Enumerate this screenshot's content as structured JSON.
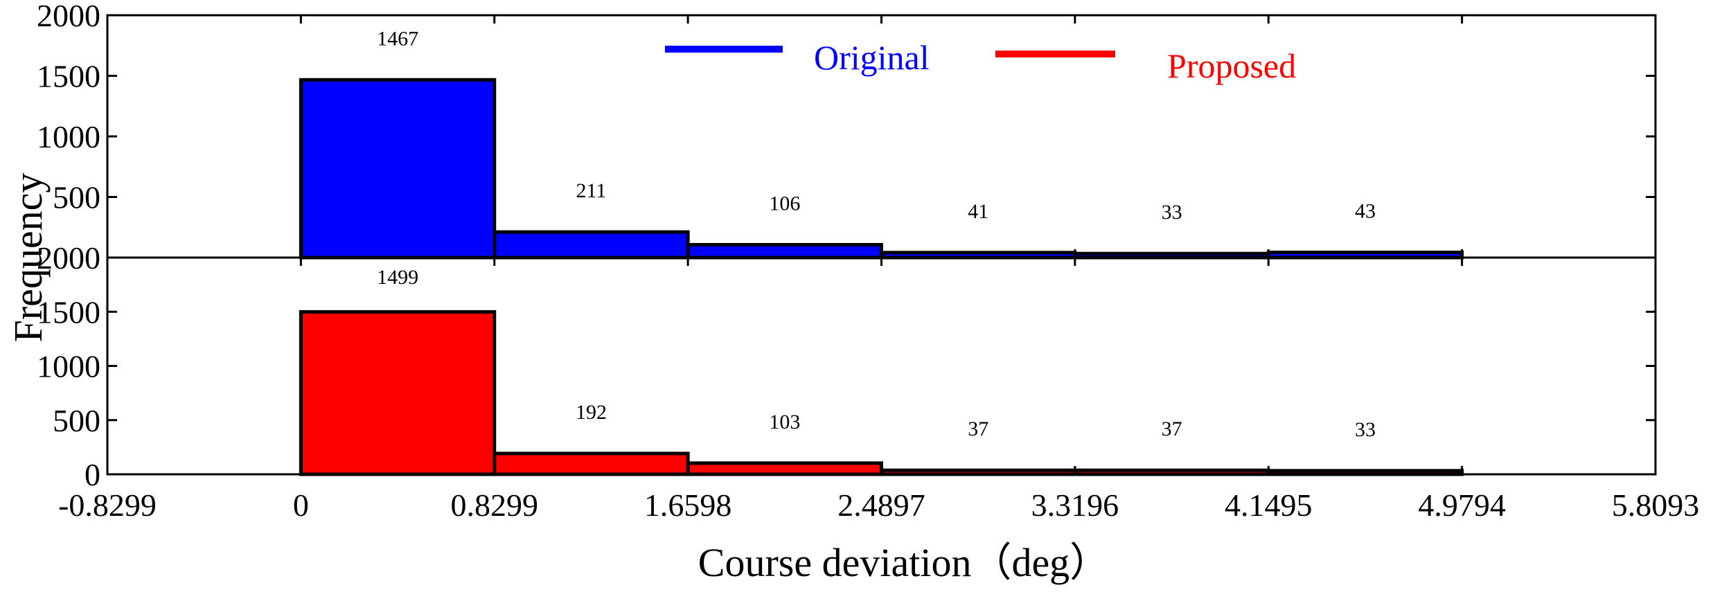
{
  "chart_data": {
    "type": "bar",
    "xlabel": "Course deviation（deg）",
    "ylabel": "Frequency",
    "x_ticks": [
      "-0.8299",
      "0",
      "0.8299",
      "1.6598",
      "2.4897",
      "3.3196",
      "4.1495",
      "4.9794",
      "5.8093"
    ],
    "bin_edges": [
      0,
      0.8299,
      1.6598,
      2.4897,
      3.3196,
      4.1495,
      4.9794
    ],
    "xlim": [
      -0.8299,
      5.8093
    ],
    "legend": {
      "position": "top-center",
      "entries": [
        "Original",
        "Proposed"
      ]
    },
    "panels": [
      {
        "series": "Original",
        "color": "#0000ff",
        "values": [
          1467,
          211,
          106,
          41,
          33,
          43
        ],
        "labels": [
          "1467",
          "211",
          "106",
          "41",
          "33",
          "43"
        ],
        "ylim": [
          0,
          2000
        ],
        "y_ticks": [
          "2000",
          "1500",
          "1000",
          "500"
        ]
      },
      {
        "series": "Proposed",
        "color": "#ff0000",
        "values": [
          1499,
          192,
          103,
          37,
          37,
          33
        ],
        "labels": [
          "1499",
          "192",
          "103",
          "37",
          "37",
          "33"
        ],
        "ylim": [
          0,
          2000
        ],
        "y_ticks": [
          "2000",
          "1500",
          "1000",
          "500",
          "0"
        ]
      }
    ]
  }
}
